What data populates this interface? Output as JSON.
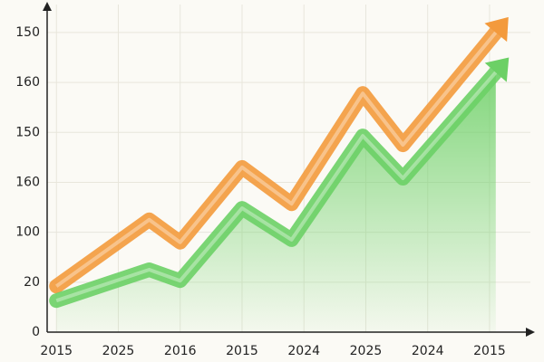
{
  "chart_data": {
    "type": "line",
    "x": [
      0,
      1.5,
      2,
      3,
      3.8,
      4.95,
      5.6,
      7.1
    ],
    "xlim": [
      -0.15,
      7.66
    ],
    "xticks": [
      {
        "value": 0,
        "label": "2015"
      },
      {
        "value": 1,
        "label": "2025"
      },
      {
        "value": 2,
        "label": "2016"
      },
      {
        "value": 3,
        "label": "2015"
      },
      {
        "value": 4,
        "label": "2024"
      },
      {
        "value": 5,
        "label": "2025"
      },
      {
        "value": 6,
        "label": "2024"
      },
      {
        "value": 7,
        "label": "2015"
      }
    ],
    "ylim": [
      0,
      6.56
    ],
    "yticks": [
      {
        "value": 0,
        "label": "0"
      },
      {
        "value": 1,
        "label": "20"
      },
      {
        "value": 2,
        "label": "100"
      },
      {
        "value": 3,
        "label": "160"
      },
      {
        "value": 4,
        "label": "150"
      },
      {
        "value": 5,
        "label": "160"
      },
      {
        "value": 6,
        "label": "150"
      }
    ],
    "grid": true,
    "series": [
      {
        "color": "#f39a3c",
        "values": [
          0.92,
          2.25,
          1.8,
          3.3,
          2.57,
          4.78,
          3.75,
          6.0
        ]
      },
      {
        "color": "#6cd066",
        "values": [
          0.63,
          1.25,
          1.03,
          2.48,
          1.85,
          3.93,
          3.08,
          5.2
        ],
        "area": true
      }
    ]
  }
}
